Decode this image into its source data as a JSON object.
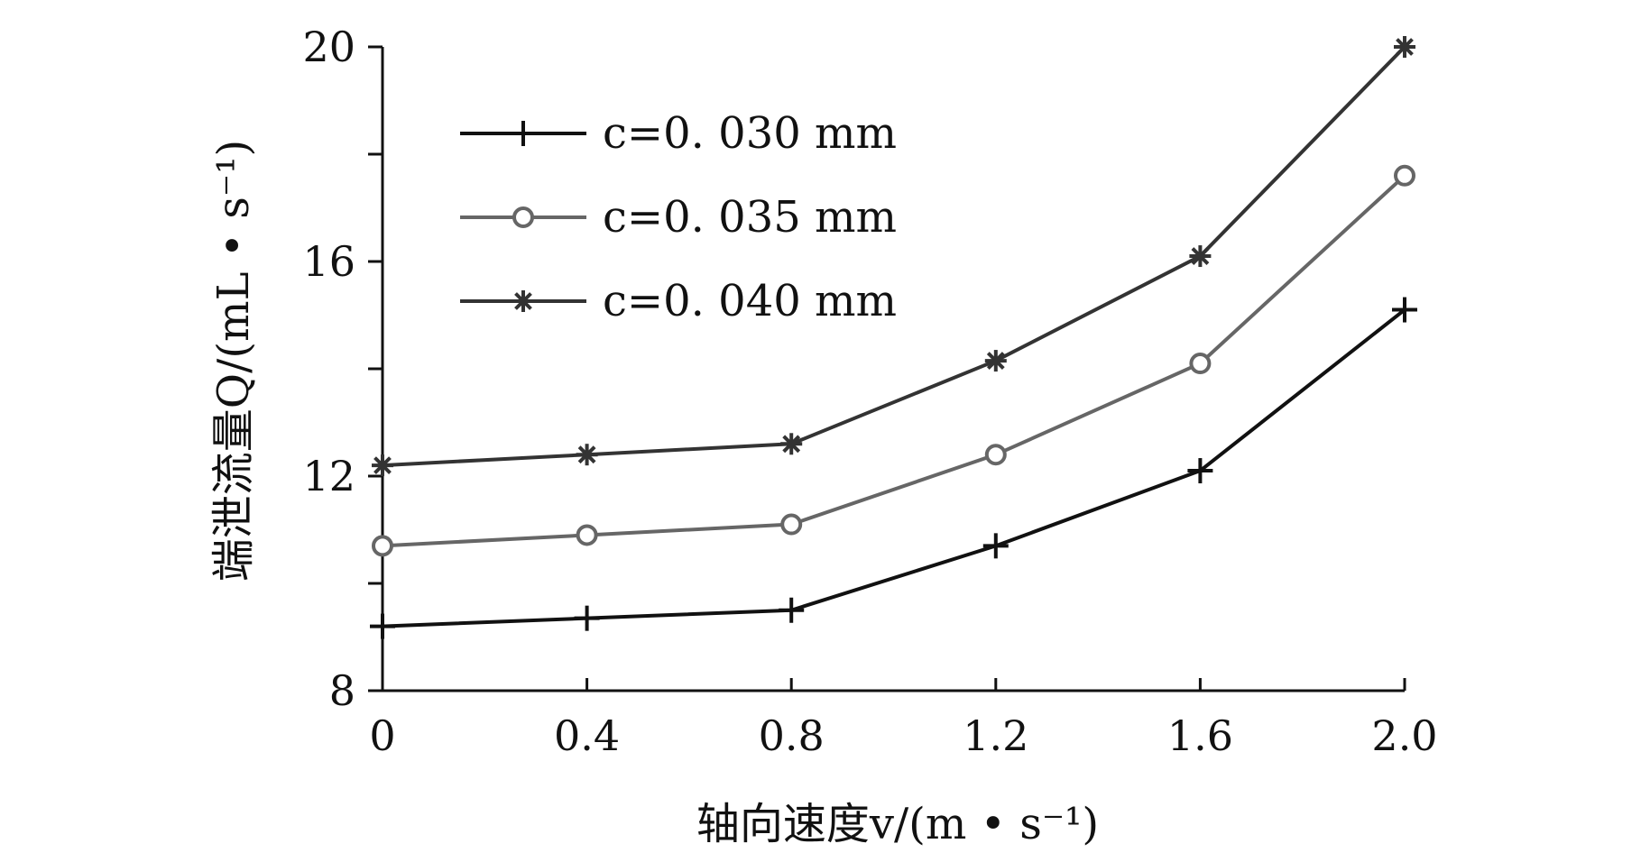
{
  "chart_data": {
    "type": "line",
    "x": [
      0,
      0.4,
      0.8,
      1.2,
      1.6,
      2.0
    ],
    "x_tick_labels": [
      "0",
      "0.4",
      "0.8",
      "1.2",
      "1.6",
      "2.0"
    ],
    "y_tick_labels": [
      "8",
      "12",
      "16",
      "20"
    ],
    "y_ticks": [
      8,
      12,
      16,
      20
    ],
    "xlim": [
      0,
      2.0
    ],
    "ylim": [
      8,
      20
    ],
    "xlabel": "轴向速度v/(m • s⁻¹)",
    "ylabel": "端泄流量Q/(mL • s⁻¹)",
    "grid": false,
    "legend_position": "top-left",
    "series": [
      {
        "name": "c=0. 030 mm",
        "marker": "plus",
        "color": "#111111",
        "values": [
          9.2,
          9.35,
          9.5,
          10.7,
          12.1,
          15.1
        ]
      },
      {
        "name": "c=0. 035 mm",
        "marker": "circle",
        "color": "#666666",
        "values": [
          10.7,
          10.9,
          11.1,
          12.4,
          14.1,
          17.6
        ]
      },
      {
        "name": "c=0. 040 mm",
        "marker": "star",
        "color": "#333333",
        "values": [
          12.2,
          12.4,
          12.6,
          14.15,
          16.1,
          20.0
        ]
      }
    ]
  }
}
